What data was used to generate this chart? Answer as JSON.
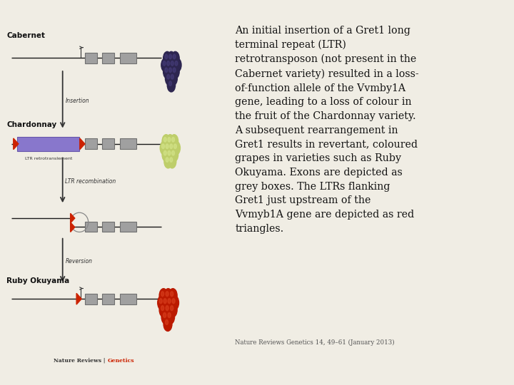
{
  "bg_color": "#f0ede4",
  "diagram_labels": {
    "cabernet": "Cabernet",
    "chardonnay": "Chardonnay",
    "ruby": "Ruby Okuyama"
  },
  "arrow_labels": {
    "insertion": "Insertion",
    "ltr_recomb": "LTR recombination",
    "reversion": "Reversion"
  },
  "ltr_label": "LTR retrotranslement",
  "citation": "Nature Reviews Genetics 14, 49–61 (January 2013)",
  "journal_black": "Nature Reviews | ",
  "journal_red": "Genetics",
  "line_color": "#1a1a1a",
  "box_color": "#a0a0a0",
  "box_edge": "#707070",
  "ltr_fill": "#8877cc",
  "ltr_edge": "#6655aa",
  "red_color": "#cc2200",
  "grape_dark_color": "#2d2650",
  "grape_dark_hilight": "#4a4080",
  "grape_light_color": "#bece6a",
  "grape_light_hilight": "#d8e890",
  "grape_red_color": "#bb1a00",
  "grape_red_hilight": "#dd4422",
  "text_color": "#111111",
  "text_desc": "An initial insertion of a Gret1 long\nterminal repeat (LTR)\nretrotransposon (not present in the\nCabernet variety) resulted in a loss-\nof-function allele of the Vvmby1A\ngene, leading to a loss of colour in\nthe fruit of the Chardonnay variety.\nA subsequent rearrangement in\nGret1 results in revertant, coloured\ngrapes in varieties such as Ruby\nOkuyama. Exons are depicted as\ngrey boxes. The LTRs flanking\nGret1 just upstream of the\nVvmyb1A gene are depicted as red\ntriangles."
}
